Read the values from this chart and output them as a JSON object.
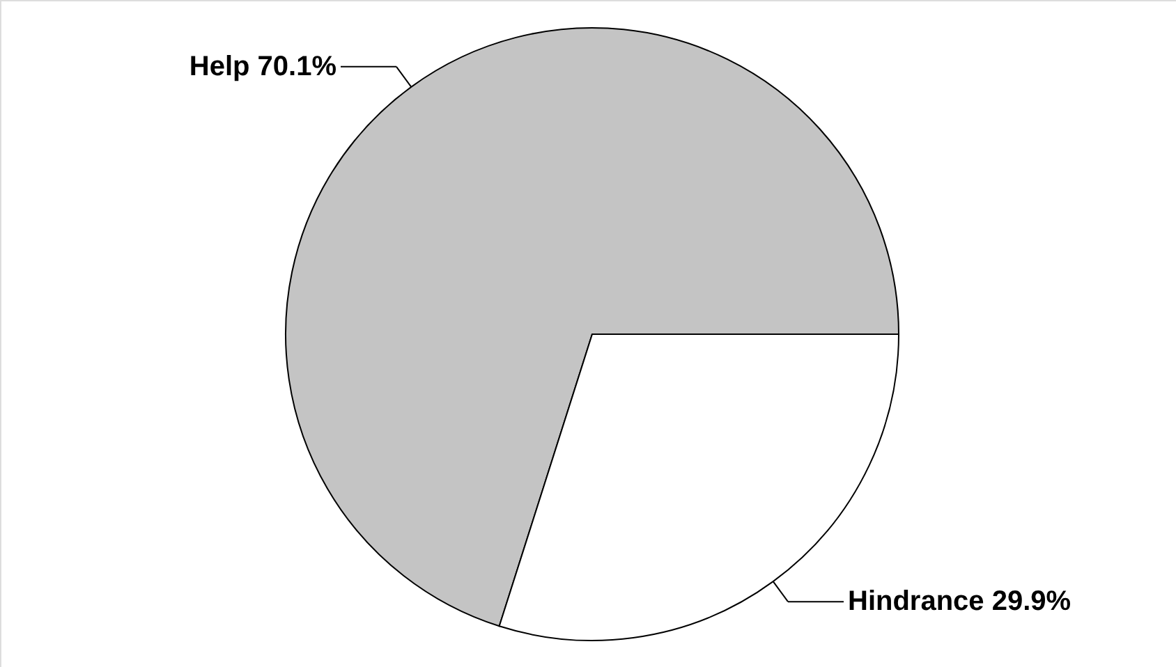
{
  "chart_data": {
    "type": "pie",
    "categories": [
      "Help",
      "Hindrance"
    ],
    "values": [
      70.1,
      29.9
    ],
    "value_labels": [
      "70.1%",
      "29.9%"
    ],
    "colors": [
      "#c4c4c4",
      "#ffffff"
    ]
  }
}
